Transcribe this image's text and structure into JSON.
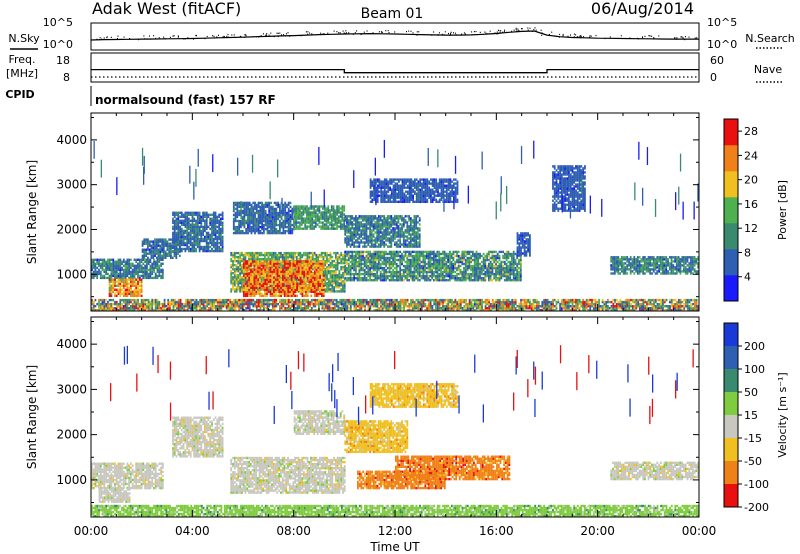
{
  "header": {
    "station": "Adak West (fitACF)",
    "beam": "Beam 01",
    "date": "06/Aug/2014"
  },
  "strip_labels": {
    "nsky": "N.Sky",
    "nsearch": "N.Search",
    "freq_top": "Freq.",
    "freq_unit": "[MHz]",
    "cpid": "CPID",
    "nave": "Nave",
    "cpid_text": "normalsound (fast) 157 RF",
    "nsky_ticks": [
      "10^5",
      "10^0"
    ],
    "nsearch_ticks": [
      "10^5",
      "10^0"
    ],
    "freq_ticks": [
      "18",
      "8"
    ],
    "nave_ticks": [
      "60",
      "0"
    ]
  },
  "chart_data": [
    {
      "type": "line",
      "name": "noise",
      "x_hours": [
        0,
        0.5,
        1,
        1.5,
        2,
        2.5,
        3,
        3.5,
        4,
        4.5,
        5,
        5.5,
        6,
        6.5,
        7,
        7.5,
        8,
        8.5,
        9,
        9.5,
        10,
        10.5,
        11,
        11.5,
        12,
        12.5,
        13,
        13.5,
        14,
        14.5,
        15,
        15.5,
        16,
        16.5,
        17,
        17.5,
        18,
        18.5,
        19,
        19.5,
        20,
        20.5,
        21,
        21.5,
        22,
        22.5,
        23,
        23.5,
        24
      ],
      "y_frac": [
        0.25,
        0.27,
        0.28,
        0.29,
        0.3,
        0.31,
        0.32,
        0.33,
        0.34,
        0.36,
        0.38,
        0.4,
        0.42,
        0.45,
        0.47,
        0.5,
        0.52,
        0.55,
        0.58,
        0.6,
        0.62,
        0.63,
        0.64,
        0.63,
        0.62,
        0.6,
        0.58,
        0.56,
        0.55,
        0.55,
        0.56,
        0.6,
        0.65,
        0.72,
        0.78,
        0.8,
        0.55,
        0.45,
        0.4,
        0.38,
        0.36,
        0.35,
        0.34,
        0.33,
        0.32,
        0.31,
        0.3,
        0.3,
        0.3
      ]
    },
    {
      "type": "line",
      "name": "frequency",
      "x_hours": [
        0,
        10,
        10,
        18,
        18,
        24
      ],
      "freq_mhz": [
        12,
        12,
        10.5,
        10.5,
        12,
        12
      ],
      "nave_value": 0
    },
    {
      "type": "heatmap",
      "name": "power",
      "xlabel": "",
      "ylabel": "Slant Range [km]",
      "xlim": [
        0,
        24
      ],
      "ylim": [
        180,
        4600
      ],
      "yticks": [
        1000,
        2000,
        3000,
        4000
      ],
      "colorbar": {
        "label": "Power [dB]",
        "ticks": [
          4,
          8,
          12,
          16,
          20,
          24,
          28
        ],
        "range": [
          0,
          30
        ],
        "colors": [
          "#1a1aff",
          "#2f5fb3",
          "#3a8a70",
          "#4fb04f",
          "#f0c020",
          "#f08018",
          "#e81010"
        ]
      },
      "regions": [
        {
          "x": [
            0.0,
            2.8
          ],
          "r": [
            900,
            1350
          ],
          "v": [
            4,
            14
          ]
        },
        {
          "x": [
            0.7,
            2.0
          ],
          "r": [
            500,
            900
          ],
          "v": [
            16,
            28
          ]
        },
        {
          "x": [
            2.0,
            3.5
          ],
          "r": [
            1350,
            1800
          ],
          "v": [
            4,
            12
          ]
        },
        {
          "x": [
            3.2,
            5.2
          ],
          "r": [
            1500,
            2400
          ],
          "v": [
            4,
            10
          ]
        },
        {
          "x": [
            5.5,
            10.0
          ],
          "r": [
            600,
            1500
          ],
          "v": [
            8,
            20
          ]
        },
        {
          "x": [
            6.0,
            9.2
          ],
          "r": [
            500,
            1300
          ],
          "v": [
            18,
            30
          ]
        },
        {
          "x": [
            5.6,
            8.0
          ],
          "r": [
            1900,
            2600
          ],
          "v": [
            4,
            10
          ]
        },
        {
          "x": [
            8.0,
            10.0
          ],
          "r": [
            2000,
            2500
          ],
          "v": [
            8,
            16
          ]
        },
        {
          "x": [
            10.0,
            17.0
          ],
          "r": [
            850,
            1500
          ],
          "v": [
            4,
            18
          ]
        },
        {
          "x": [
            10.0,
            13.0
          ],
          "r": [
            1600,
            2300
          ],
          "v": [
            4,
            14
          ]
        },
        {
          "x": [
            11.0,
            14.5
          ],
          "r": [
            2600,
            3100
          ],
          "v": [
            4,
            8
          ]
        },
        {
          "x": [
            16.8,
            17.3
          ],
          "r": [
            1400,
            1900
          ],
          "v": [
            4,
            8
          ]
        },
        {
          "x": [
            18.2,
            19.5
          ],
          "r": [
            2400,
            3400
          ],
          "v": [
            4,
            8
          ]
        },
        {
          "x": [
            20.5,
            24.0
          ],
          "r": [
            1000,
            1400
          ],
          "v": [
            4,
            16
          ]
        },
        {
          "x": [
            0.0,
            24.0
          ],
          "r": [
            180,
            450
          ],
          "v": [
            4,
            28
          ]
        }
      ]
    },
    {
      "type": "heatmap",
      "name": "velocity",
      "xlabel": "Time UT",
      "ylabel": "Slant Range [km]",
      "xlim": [
        0,
        24
      ],
      "ylim": [
        180,
        4600
      ],
      "xticks": [
        "00:00",
        "04:00",
        "08:00",
        "12:00",
        "16:00",
        "20:00",
        "00:00"
      ],
      "yticks": [
        1000,
        2000,
        3000,
        4000
      ],
      "colorbar": {
        "label": "Velocity [m s⁻¹]",
        "ticks": [
          200,
          100,
          50,
          15,
          -15,
          -50,
          -100,
          -200
        ],
        "colors": [
          "#1a3ad8",
          "#2f5fb3",
          "#3a8a70",
          "#80cc40",
          "#c8c8c0",
          "#f0c020",
          "#f08018",
          "#e81010"
        ]
      },
      "regions": [
        {
          "x": [
            0.0,
            2.8
          ],
          "r": [
            800,
            1350
          ],
          "c": 4
        },
        {
          "x": [
            0.3,
            1.5
          ],
          "r": [
            500,
            800
          ],
          "c": 4
        },
        {
          "x": [
            3.2,
            5.2
          ],
          "r": [
            1500,
            2400
          ],
          "c": 4
        },
        {
          "x": [
            5.5,
            10.0
          ],
          "r": [
            700,
            1500
          ],
          "c": 4
        },
        {
          "x": [
            8.0,
            10.0
          ],
          "r": [
            2000,
            2500
          ],
          "c": 4
        },
        {
          "x": [
            10.0,
            12.5
          ],
          "r": [
            1600,
            2300
          ],
          "c": 5
        },
        {
          "x": [
            10.5,
            14.0
          ],
          "r": [
            800,
            1200
          ],
          "c": 6
        },
        {
          "x": [
            12.0,
            16.5
          ],
          "r": [
            1000,
            1500
          ],
          "c": 6
        },
        {
          "x": [
            11.0,
            14.5
          ],
          "r": [
            2600,
            3100
          ],
          "c": 5
        },
        {
          "x": [
            20.5,
            24.0
          ],
          "r": [
            1000,
            1400
          ],
          "c": 4
        },
        {
          "x": [
            0.0,
            24.0
          ],
          "r": [
            180,
            450
          ],
          "c": 3
        }
      ]
    }
  ]
}
